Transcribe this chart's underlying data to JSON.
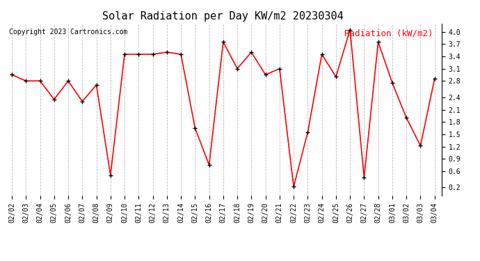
{
  "title": "Solar Radiation per Day KW/m2 20230304",
  "copyright_text": "Copyright 2023 Cartronics.com",
  "legend_label": "Radiation (kW/m2)",
  "dates": [
    "02/02",
    "02/03",
    "02/04",
    "02/05",
    "02/06",
    "02/07",
    "02/08",
    "02/09",
    "02/10",
    "02/11",
    "02/12",
    "02/13",
    "02/14",
    "02/15",
    "02/16",
    "02/17",
    "02/18",
    "02/19",
    "02/20",
    "02/21",
    "02/22",
    "02/23",
    "02/24",
    "02/25",
    "02/26",
    "02/27",
    "02/28",
    "03/01",
    "03/02",
    "03/03",
    "03/04"
  ],
  "values": [
    2.95,
    2.8,
    2.8,
    2.35,
    2.8,
    2.3,
    2.7,
    0.5,
    3.45,
    3.45,
    3.45,
    3.5,
    3.45,
    1.65,
    0.75,
    3.75,
    3.1,
    3.5,
    2.95,
    3.1,
    0.22,
    1.55,
    3.45,
    2.9,
    4.05,
    0.45,
    3.75,
    2.75,
    1.9,
    1.22,
    2.85
  ],
  "line_color": "red",
  "marker_color": "black",
  "marker_style": "+",
  "marker_size": 5,
  "line_width": 1.2,
  "ylim": [
    0.0,
    4.2
  ],
  "yticks": [
    0.2,
    0.6,
    0.9,
    1.2,
    1.5,
    1.8,
    2.1,
    2.4,
    2.8,
    3.1,
    3.4,
    3.7,
    4.0
  ],
  "grid_color": "#bbbbbb",
  "grid_style": "--",
  "bg_color": "white",
  "title_fontsize": 11,
  "copyright_fontsize": 7,
  "legend_fontsize": 9,
  "tick_fontsize": 7,
  "legend_color": "red"
}
